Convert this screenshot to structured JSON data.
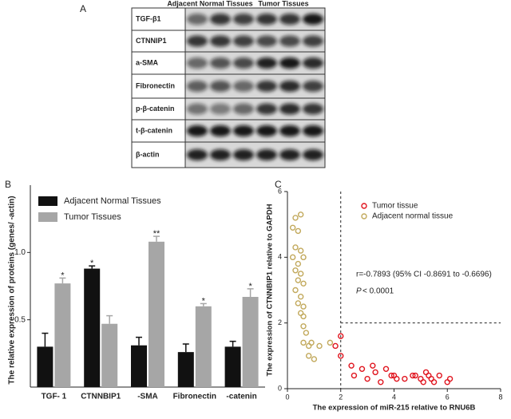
{
  "blot": {
    "panel": "A",
    "groups": [
      "Adjacent Normal Tissues",
      "Tumor Tissues"
    ],
    "rows": [
      "TGF-β1",
      "CTNNIP1",
      "a-SMA",
      "Fibronectin",
      "p-β-catenin",
      "t-β-catenin",
      "β-actin"
    ]
  },
  "chart_data": [
    {
      "type": "bar",
      "panel": "B",
      "y_label": "The relative expression of proteins (genes/ -actin)",
      "categories": [
        "TGF- 1",
        "CTNNBIP1",
        "-SMA",
        "Fibronectin",
        "-catenin"
      ],
      "series": [
        {
          "name": "Adjacent Normal Tissues",
          "color": "#111111",
          "values": [
            0.3,
            0.88,
            0.31,
            0.26,
            0.3
          ],
          "errors": [
            0.1,
            0.02,
            0.06,
            0.06,
            0.04
          ],
          "significance": [
            null,
            "*",
            null,
            null,
            null
          ]
        },
        {
          "name": "Tumor Tissues",
          "color": "#a6a6a6",
          "values": [
            0.77,
            0.47,
            1.08,
            0.6,
            0.67
          ],
          "errors": [
            0.04,
            0.06,
            0.04,
            0.02,
            0.06
          ],
          "significance": [
            "*",
            null,
            "**",
            "*",
            "*"
          ]
        }
      ],
      "ylim": [
        0,
        1.5
      ],
      "yticks": [
        {
          "value": 0.5,
          "label": "0.5"
        },
        {
          "value": 1,
          "label": "1.0"
        }
      ],
      "legend": "top-left"
    },
    {
      "type": "scatter",
      "panel": "C",
      "x_label": "The expression of miR-215 relative to RNU6B",
      "y_label": "The expression of CTNNBIP1 relative to GAPDH",
      "series": [
        {
          "name": "Tumor tissue",
          "color": "#e0141e",
          "x": [
            1.8,
            2.0,
            2.0,
            2.4,
            2.5,
            2.8,
            3.0,
            3.2,
            3.3,
            3.5,
            3.7,
            3.9,
            4.0,
            4.1,
            4.4,
            4.8,
            5.0,
            5.2,
            5.3,
            5.4,
            5.5,
            5.7,
            6.0,
            6.1,
            5.1,
            4.7
          ],
          "y": [
            1.3,
            1.0,
            1.6,
            0.7,
            0.4,
            0.6,
            0.3,
            0.7,
            0.5,
            0.2,
            0.6,
            0.4,
            0.4,
            0.3,
            0.3,
            0.4,
            0.3,
            0.5,
            0.4,
            0.3,
            0.2,
            0.4,
            0.2,
            0.3,
            0.2,
            0.4
          ]
        },
        {
          "name": "Adjacent normal tissue",
          "color": "#c2a95c",
          "x": [
            0.3,
            0.5,
            0.2,
            0.4,
            0.3,
            0.5,
            0.2,
            0.6,
            0.4,
            0.3,
            0.5,
            0.4,
            0.6,
            0.3,
            0.5,
            0.4,
            0.6,
            0.5,
            0.6,
            0.6,
            0.7,
            0.6,
            0.8,
            0.9,
            1.2,
            0.8,
            1.0,
            1.6
          ],
          "y": [
            5.2,
            5.3,
            4.9,
            4.8,
            4.3,
            4.2,
            4.0,
            4.0,
            3.8,
            3.6,
            3.5,
            3.3,
            3.2,
            3.0,
            2.8,
            2.6,
            2.5,
            2.3,
            2.2,
            1.9,
            1.7,
            1.4,
            1.3,
            1.4,
            1.3,
            1.0,
            0.9,
            1.4
          ]
        }
      ],
      "xlim": [
        0,
        8
      ],
      "xticks": [
        0,
        2,
        4,
        6,
        8
      ],
      "ylim": [
        0,
        6
      ],
      "yticks": [
        0,
        2,
        4,
        6
      ],
      "reference_lines": {
        "x": 2,
        "y": 2
      },
      "annotation": "r=-0.7893 (95% CI  -0.8691 to -0.6696)",
      "p_label": "P",
      "p_value": "< 0.0001",
      "legend": "top-right"
    }
  ]
}
